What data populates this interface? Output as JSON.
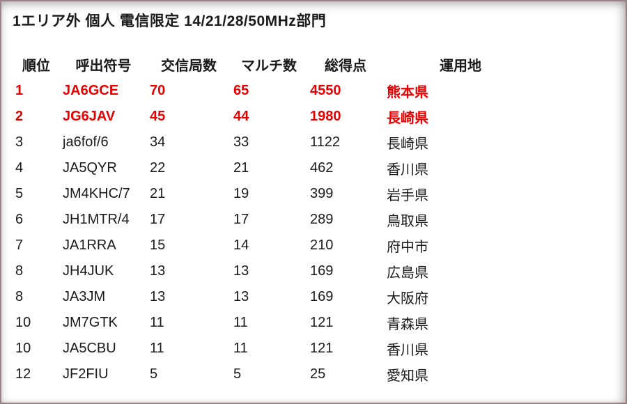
{
  "page": {
    "title": "1エリア外 個人 電信限定 14/21/28/50MHz部門"
  },
  "colors": {
    "highlight": "#e60000",
    "text": "#1a1a1a",
    "border": "#9c8288"
  },
  "table": {
    "headers": {
      "rank": "順位",
      "callsign": "呼出符号",
      "qso": "交信局数",
      "multi": "マルチ数",
      "score": "総得点",
      "location": "運用地"
    },
    "rows": [
      {
        "rank": "1",
        "callsign": "JA6GCE",
        "qso": "70",
        "multi": "65",
        "score": "4550",
        "location": "熊本県",
        "highlighted": true
      },
      {
        "rank": "2",
        "callsign": "JG6JAV",
        "qso": "45",
        "multi": "44",
        "score": "1980",
        "location": "長崎県",
        "highlighted": true
      },
      {
        "rank": "3",
        "callsign": "ja6fof/6",
        "qso": "34",
        "multi": "33",
        "score": "1122",
        "location": "長崎県",
        "highlighted": false
      },
      {
        "rank": "4",
        "callsign": "JA5QYR",
        "qso": "22",
        "multi": "21",
        "score": "462",
        "location": "香川県",
        "highlighted": false
      },
      {
        "rank": "5",
        "callsign": "JM4KHC/7",
        "qso": "21",
        "multi": "19",
        "score": "399",
        "location": "岩手県",
        "highlighted": false
      },
      {
        "rank": "6",
        "callsign": "JH1MTR/4",
        "qso": "17",
        "multi": "17",
        "score": "289",
        "location": "鳥取県",
        "highlighted": false
      },
      {
        "rank": "7",
        "callsign": "JA1RRA",
        "qso": "15",
        "multi": "14",
        "score": "210",
        "location": "府中市",
        "highlighted": false
      },
      {
        "rank": "8",
        "callsign": "JH4JUK",
        "qso": "13",
        "multi": "13",
        "score": "169",
        "location": "広島県",
        "highlighted": false
      },
      {
        "rank": "8",
        "callsign": "JA3JM",
        "qso": "13",
        "multi": "13",
        "score": "169",
        "location": "大阪府",
        "highlighted": false
      },
      {
        "rank": "10",
        "callsign": "JM7GTK",
        "qso": "11",
        "multi": "11",
        "score": "121",
        "location": "青森県",
        "highlighted": false
      },
      {
        "rank": "10",
        "callsign": "JA5CBU",
        "qso": "11",
        "multi": "11",
        "score": "121",
        "location": "香川県",
        "highlighted": false
      },
      {
        "rank": "12",
        "callsign": "JF2FIU",
        "qso": "5",
        "multi": "5",
        "score": "25",
        "location": "愛知県",
        "highlighted": false
      }
    ]
  }
}
